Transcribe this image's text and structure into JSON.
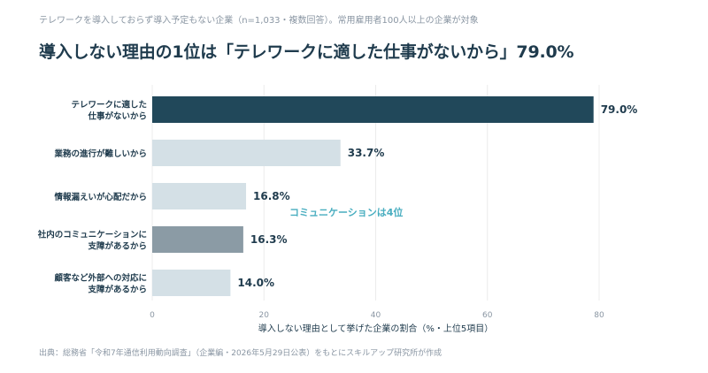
{
  "header": {
    "subtitle": "テレワークを導入しておらず導入予定もない企業（n=1,033・複数回答）。常用雇用者100人以上の企業が対象",
    "title": "導入しない理由の1位は「テレワークに適した仕事がないから」79.0%"
  },
  "chart_data": {
    "type": "bar",
    "orientation": "horizontal",
    "categories": [
      [
        "テレワークに適した",
        "仕事がないから"
      ],
      [
        "業務の進行が難しいから"
      ],
      [
        "情報漏えいが心配だから"
      ],
      [
        "社内のコミュニケーションに",
        "支障があるから"
      ],
      [
        "顧客など外部への対応に",
        "支障があるから"
      ]
    ],
    "values": [
      79.0,
      33.7,
      16.8,
      16.3,
      14.0
    ],
    "value_labels": [
      "79.0%",
      "33.7%",
      "16.8%",
      "16.3%",
      "14.0%"
    ],
    "bar_colors": [
      "#21485a",
      "#d4e0e6",
      "#d4e0e6",
      "#8b9ba5",
      "#d4e0e6"
    ],
    "xlabel": "導入しない理由として挙げた企業の割合（%・上位5項目）",
    "xlim": [
      0,
      85
    ],
    "xticks": [
      0,
      20,
      40,
      60,
      80
    ],
    "grid": true,
    "annotation": {
      "text": "コミュニケーションは4位",
      "color": "#4aaec0",
      "category_index": 3
    }
  },
  "footer": {
    "source": "出典：総務省「令和7年通信利用動向調査」（企業編・2026年5月29日公表）をもとにスキルアップ研究所が作成"
  }
}
